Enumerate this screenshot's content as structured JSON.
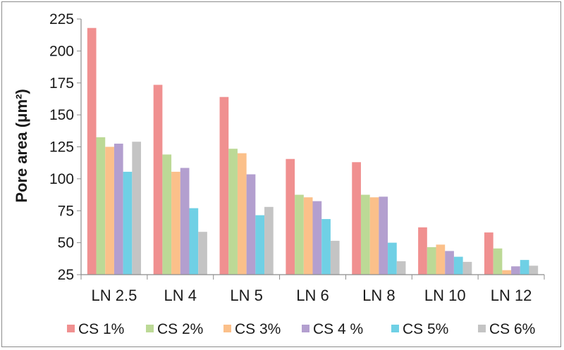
{
  "chart_data": {
    "type": "bar",
    "title": "",
    "xlabel": "",
    "ylabel": "Pore area (μm²)",
    "ylim": [
      25,
      225
    ],
    "yticks": [
      25,
      50,
      75,
      100,
      125,
      150,
      175,
      200,
      225
    ],
    "grid": false,
    "legend_position": "bottom",
    "categories": [
      "LN 2.5",
      "LN 4",
      "LN 5",
      "LN 6",
      "LN 8",
      "LN 10",
      "LN 12"
    ],
    "series": [
      {
        "name": "CS 1%",
        "color": "#f09090",
        "values": [
          218,
          173.5,
          164,
          115.5,
          113,
          62,
          58
        ]
      },
      {
        "name": "CS 2%",
        "color": "#bcd996",
        "values": [
          132.5,
          119,
          123.5,
          87.5,
          87.5,
          46.5,
          45.5
        ]
      },
      {
        "name": "CS 3%",
        "color": "#fbc08a",
        "values": [
          125,
          105.5,
          120,
          85.5,
          85.5,
          48.5,
          28.5
        ]
      },
      {
        "name": "CS 4 %",
        "color": "#b39fcf",
        "values": [
          127.5,
          108.5,
          103.5,
          82.5,
          86,
          43.5,
          31.5
        ]
      },
      {
        "name": "CS 5%",
        "color": "#6fd0e5",
        "values": [
          105.5,
          77,
          71.5,
          68.5,
          50,
          39,
          36.5
        ]
      },
      {
        "name": "CS 6%",
        "color": "#c4c4c4",
        "values": [
          129,
          58.5,
          78,
          51.5,
          35.5,
          35,
          32
        ]
      }
    ]
  }
}
